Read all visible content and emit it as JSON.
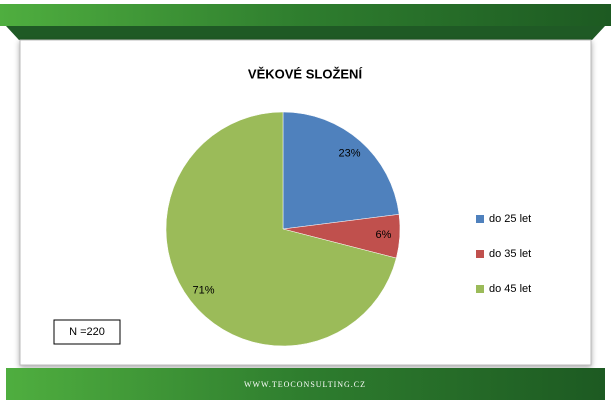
{
  "chart_data": {
    "type": "pie",
    "title": "VĚKOVÉ SLOŽENÍ",
    "categories": [
      "do 25 let",
      "do 35 let",
      "do 45 let"
    ],
    "values": [
      23,
      6,
      71
    ],
    "value_labels": [
      "23%",
      "6%",
      "71%"
    ],
    "colors": [
      "#4f81bd",
      "#c0504d",
      "#9bbb59"
    ],
    "legend": "right",
    "annotation": "N =220"
  },
  "footer": {
    "text": "WWW.TEOCONSULTING.CZ"
  }
}
